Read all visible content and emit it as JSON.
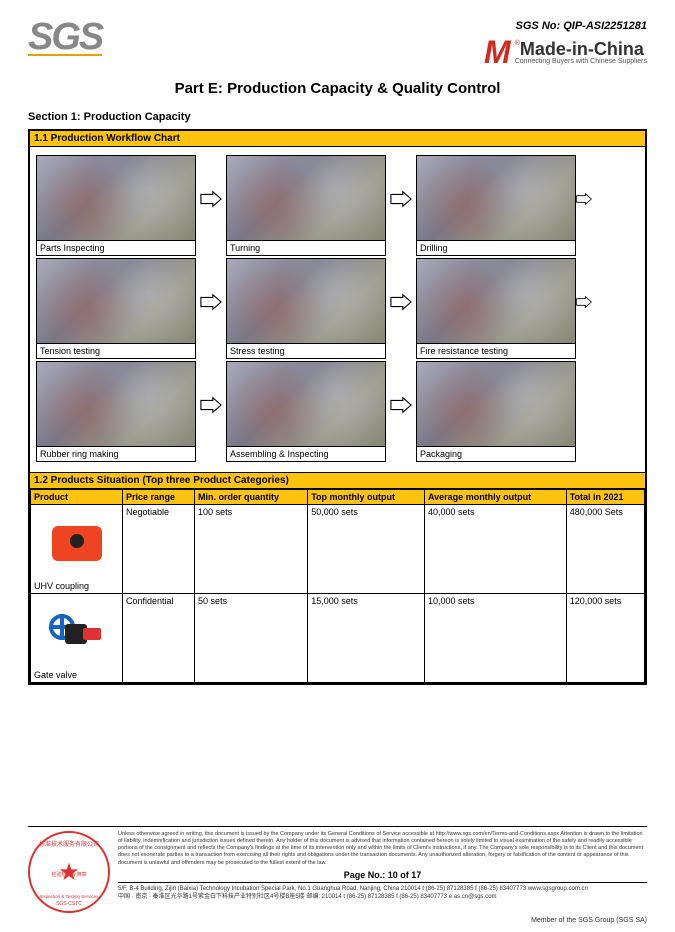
{
  "header": {
    "sgs_logo": "SGS",
    "sgs_no_label": "SGS No:",
    "sgs_no_value": "QIP-ASI2251281",
    "mic_m": "M",
    "mic_reg": "®",
    "mic_main": "Made-in-China",
    "mic_sub": "Connecting Buyers with Chinese Suppliers"
  },
  "titles": {
    "part": "Part E: Production Capacity & Quality Control",
    "section1": "Section 1: Production Capacity",
    "sub11": "1.1 Production Workflow Chart",
    "sub12": "1.2 Products Situation (Top three Product Categories)"
  },
  "workflow": {
    "rows": [
      [
        "Parts Inspecting",
        "Turning",
        "Drilling"
      ],
      [
        "Tension testing",
        "Stress testing",
        "Fire resistance testing"
      ],
      [
        "Rubber ring making",
        "Assembling & Inspecting",
        "Packaging"
      ]
    ]
  },
  "products_table": {
    "headers": [
      "Product",
      "Price range",
      "Min. order quantity",
      "Top monthly output",
      "Average monthly output",
      "Total in 2021"
    ],
    "rows": [
      {
        "name": "UHV coupling",
        "price": "Negotiable",
        "min": "100 sets",
        "top": "50,000 sets",
        "avg": "40,000 sets",
        "total": "480,000 Sets"
      },
      {
        "name": "Gate valve",
        "price": "Confidential",
        "min": "50 sets",
        "top": "15,000 sets",
        "avg": "10,000 sets",
        "total": "120,000 sets"
      }
    ]
  },
  "footer": {
    "disclaimer": "Unless otherwise agreed in writing, this document is issued by the Company under its General Conditions of Service accessible at http://www.sgs.com/en/Terms-and-Conditions.aspx Attention is drawn to the limitation of liability, indemnification and jurisdiction issues defined therein. Any holder of this document is advised that information contained hereon is solely limited to visual examination of the safely and readily accessible portions of the consignment and reflects the Company's findings at the time of its intervention only and within the limits of Client's instructions, if any. The Company's sole responsibility is to its Client and this document does not exonerate parties to a transaction from exercising all their rights and obligations under the transaction documents. Any unauthorized alteration, forgery or falsification of the content or appearance of this document is unlawful and offenders may be prosecuted to the fullest extent of the law.",
    "page_label": "Page No.:",
    "page_current": "10",
    "page_of": "of",
    "page_total": "17",
    "addr_line1": "5/F, B-4 Building, Zijin (Baixia) Technology Incubation Special Park, No.1 Guanghua Road, Nanjing, China  210014   t (86-25) 87128385   f (86-25) 83407773   www.sgsgroup.com.cn",
    "addr_line2": "中国 · 南京 · 秦淮区光华路1号紫金白下科技产业特别社区4号楼B座5楼  邮编: 210014   t (86-25) 87128385   f (86-25) 83407773   e as.cn@sgs.com",
    "member": "Member of the SGS Group (SGS SA)",
    "stamp_top": "标准技术服务有限公司",
    "stamp_mid": "检验检测专用章",
    "stamp_bot": "Inspection & Testing Services"
  },
  "colors": {
    "yellow": "#fec30c",
    "sgs_gray": "#888888",
    "sgs_underline": "#e6a000",
    "mic_red": "#d4291f",
    "stamp_red": "#d33333"
  }
}
